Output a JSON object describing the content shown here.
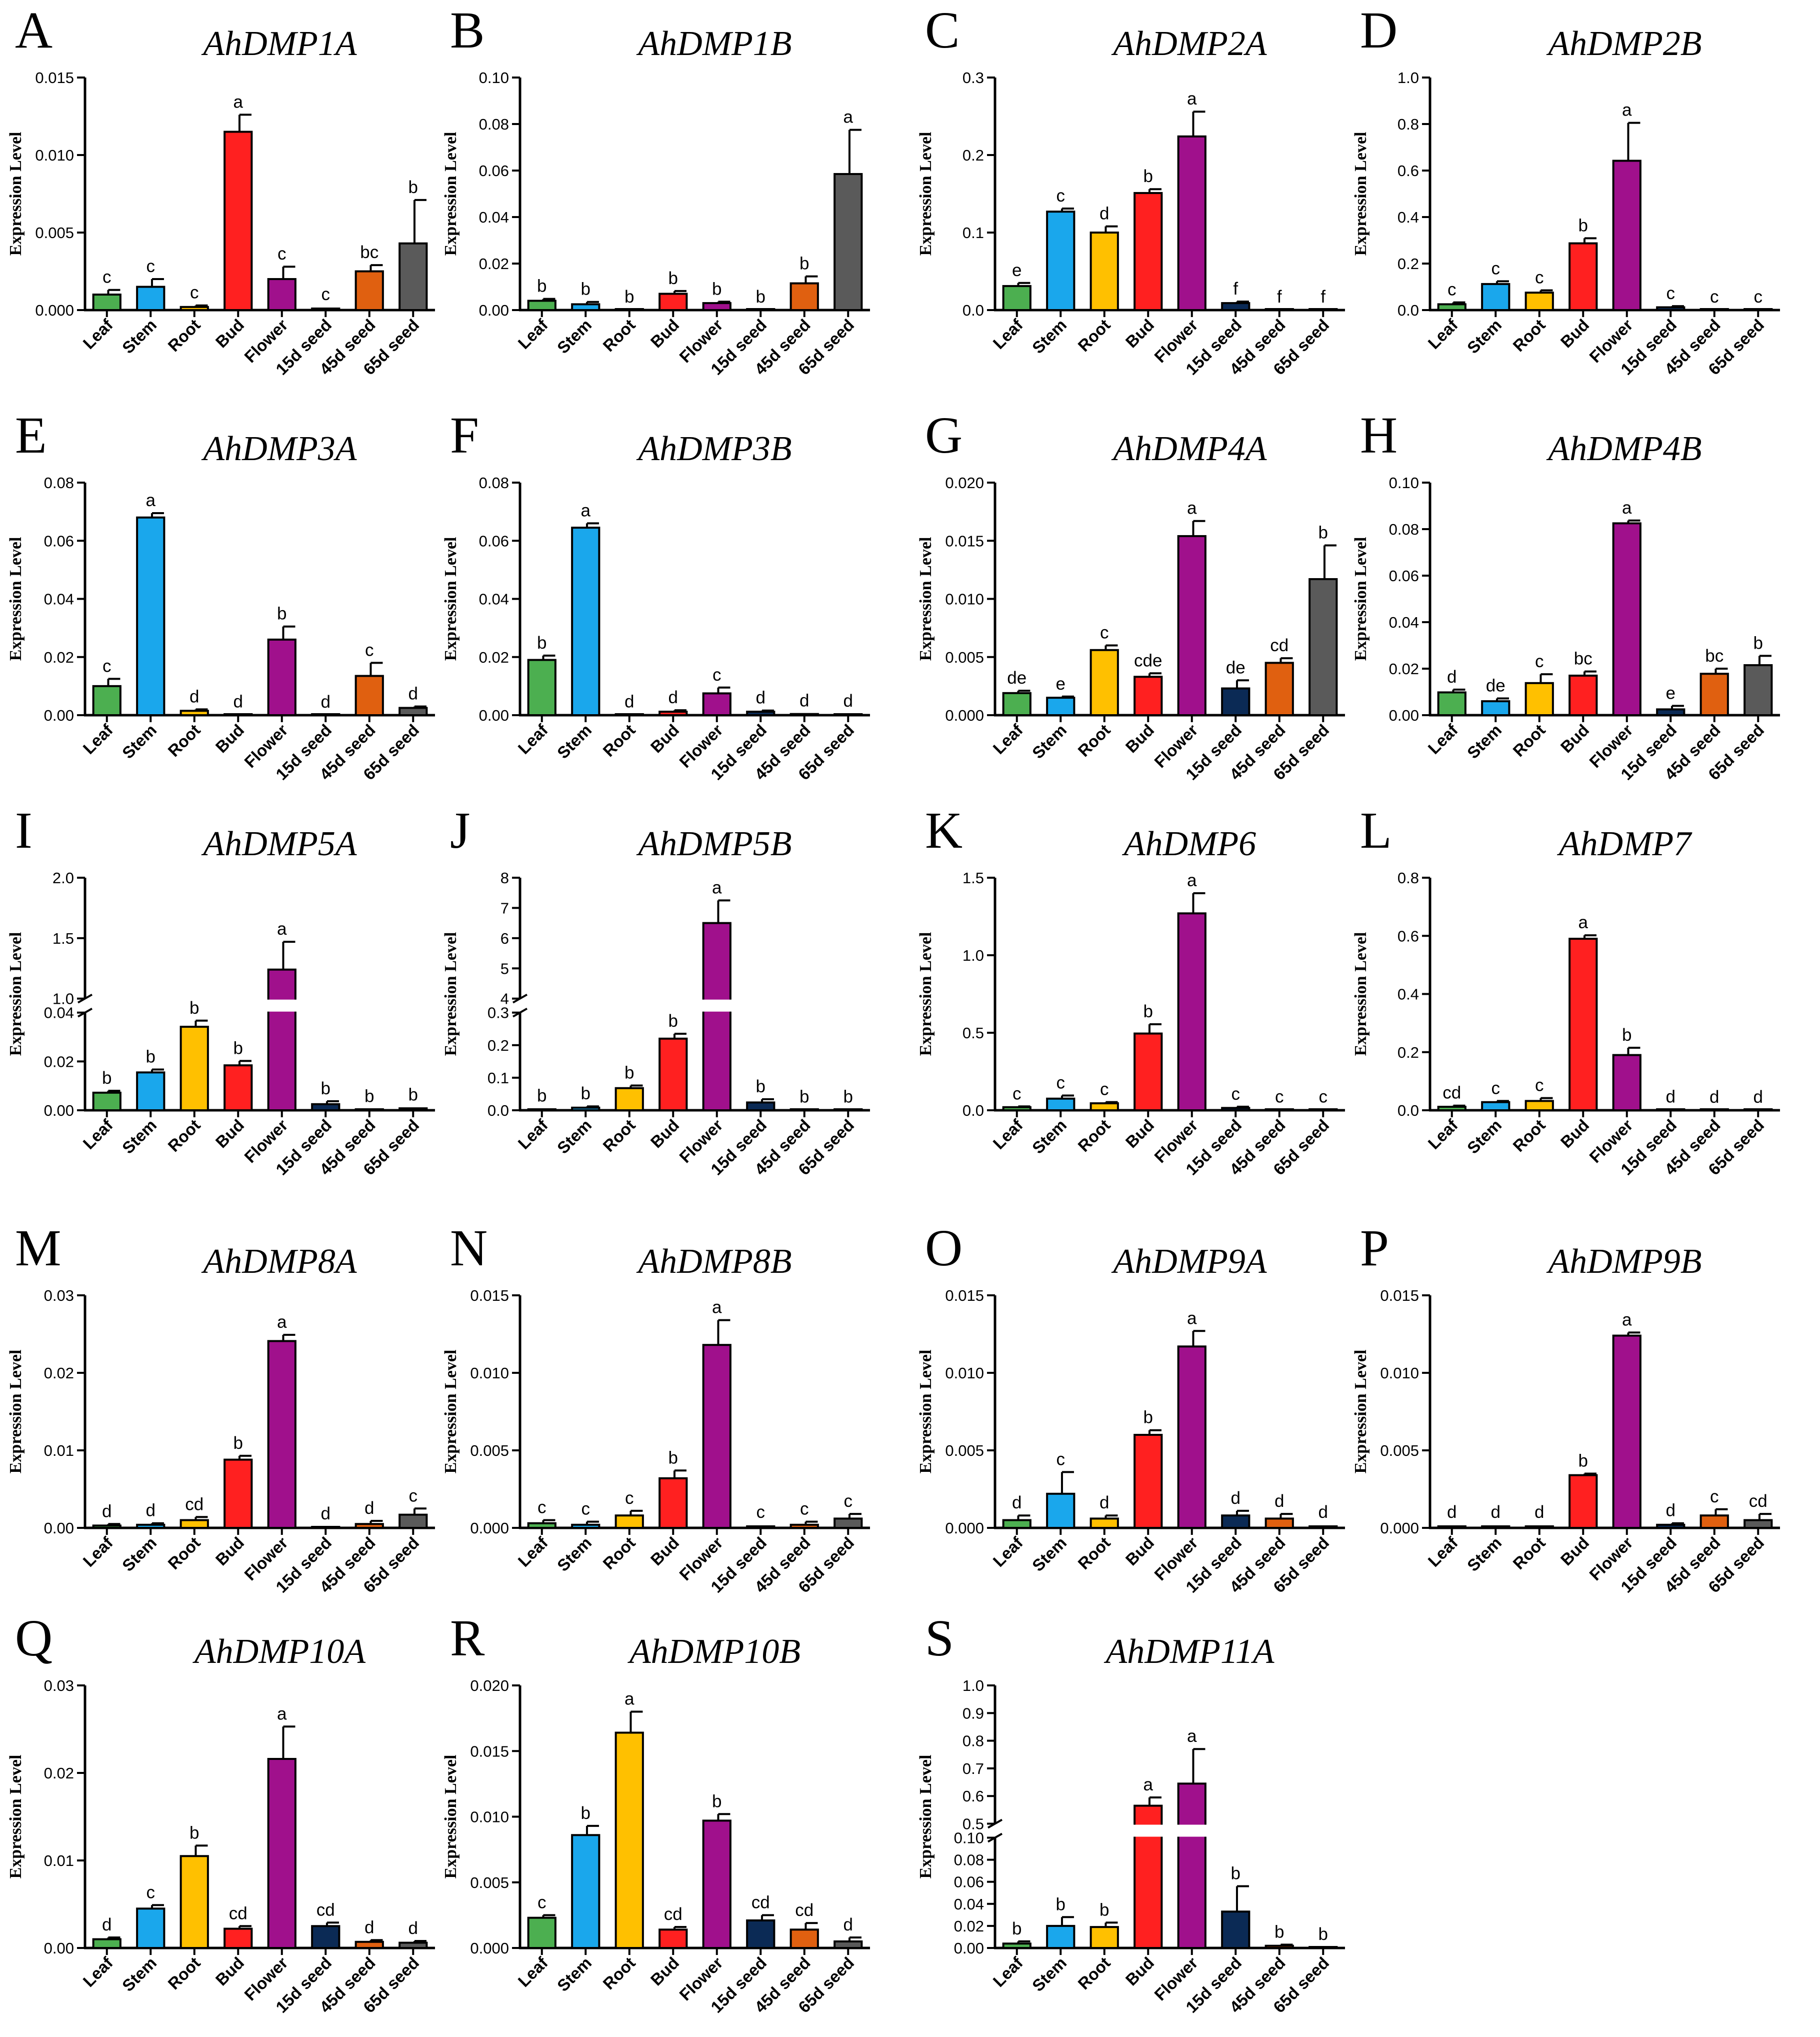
{
  "figure": {
    "categories": [
      "Leaf",
      "Stem",
      "Root",
      "Bud",
      "Flower",
      "15d seed",
      "45d seed",
      "65d seed"
    ],
    "colors": [
      "#4caf50",
      "#1aa7ec",
      "#ffc000",
      "#ff2020",
      "#a0108c",
      "#0b2a55",
      "#e06010",
      "#5a5a5a"
    ]
  },
  "chart_data": [
    {
      "panel": "A",
      "title": "AhDMP1A",
      "type": "bar",
      "ylabel": "Expression Level",
      "yticks": [
        0.0,
        0.005,
        0.01,
        0.015
      ],
      "tick_labels": [
        "0.000",
        "0.005",
        "0.010",
        "0.015"
      ],
      "ylim": [
        0,
        0.015
      ],
      "values": [
        0.001,
        0.0015,
        0.0002,
        0.0115,
        0.002,
        0.0001,
        0.0025,
        0.0043
      ],
      "errors": [
        0.0003,
        0.0005,
        0.0001,
        0.0011,
        0.0008,
        0.0001,
        0.0004,
        0.0028
      ],
      "sig": [
        "c",
        "c",
        "c",
        "a",
        "c",
        "c",
        "bc",
        "b"
      ]
    },
    {
      "panel": "B",
      "title": "AhDMP1B",
      "type": "bar",
      "ylabel": "Expression Level",
      "yticks": [
        0,
        0.02,
        0.04,
        0.06,
        0.08,
        0.1
      ],
      "tick_labels": [
        "0.00",
        "0.02",
        "0.04",
        "0.06",
        "0.08",
        "0.10"
      ],
      "ylim": [
        0,
        0.1
      ],
      "values": [
        0.004,
        0.0025,
        0.0001,
        0.007,
        0.003,
        0.0001,
        0.0115,
        0.0585
      ],
      "errors": [
        0.0008,
        0.001,
        0.0001,
        0.0012,
        0.0006,
        0.0001,
        0.003,
        0.019
      ],
      "sig": [
        "b",
        "b",
        "b",
        "b",
        "b",
        "b",
        "b",
        "a"
      ]
    },
    {
      "panel": "C",
      "title": "AhDMP2A",
      "type": "bar",
      "ylabel": "Expression Level",
      "yticks": [
        0,
        0.1,
        0.2,
        0.3
      ],
      "tick_labels": [
        "0.0",
        "0.1",
        "0.2",
        "0.3"
      ],
      "ylim": [
        0,
        0.3
      ],
      "values": [
        0.031,
        0.127,
        0.1,
        0.151,
        0.224,
        0.009,
        0.0005,
        0.0003
      ],
      "errors": [
        0.004,
        0.004,
        0.008,
        0.005,
        0.032,
        0.002,
        0.0003,
        0.0002
      ],
      "sig": [
        "e",
        "c",
        "d",
        "b",
        "a",
        "f",
        "f",
        "f"
      ]
    },
    {
      "panel": "D",
      "title": "AhDMP2B",
      "type": "bar",
      "ylabel": "Expression Level",
      "yticks": [
        0,
        0.2,
        0.4,
        0.6,
        0.8,
        1.0
      ],
      "tick_labels": [
        "0.0",
        "0.2",
        "0.4",
        "0.6",
        "0.8",
        "1.0"
      ],
      "ylim": [
        0,
        1.0
      ],
      "values": [
        0.025,
        0.112,
        0.075,
        0.287,
        0.642,
        0.012,
        0.001,
        0.001
      ],
      "errors": [
        0.008,
        0.012,
        0.01,
        0.022,
        0.163,
        0.005,
        0.001,
        0.001
      ],
      "sig": [
        "c",
        "c",
        "c",
        "b",
        "a",
        "c",
        "c",
        "c"
      ]
    },
    {
      "panel": "E",
      "title": "AhDMP3A",
      "type": "bar",
      "ylabel": "Expression Level",
      "yticks": [
        0,
        0.02,
        0.04,
        0.06,
        0.08
      ],
      "tick_labels": [
        "0.00",
        "0.02",
        "0.04",
        "0.06",
        "0.08"
      ],
      "ylim": [
        0,
        0.08
      ],
      "values": [
        0.01,
        0.068,
        0.0015,
        0.0002,
        0.026,
        0.0001,
        0.0135,
        0.0025
      ],
      "errors": [
        0.0025,
        0.0015,
        0.0005,
        0.0001,
        0.0045,
        0.0001,
        0.0045,
        0.0005
      ],
      "sig": [
        "c",
        "a",
        "d",
        "d",
        "b",
        "d",
        "c",
        "d"
      ]
    },
    {
      "panel": "F",
      "title": "AhDMP3B",
      "type": "bar",
      "ylabel": "Expression Level",
      "yticks": [
        0,
        0.02,
        0.04,
        0.06,
        0.08
      ],
      "tick_labels": [
        "0.00",
        "0.02",
        "0.04",
        "0.06",
        "0.08"
      ],
      "ylim": [
        0,
        0.08
      ],
      "values": [
        0.019,
        0.0645,
        0.0002,
        0.0012,
        0.0075,
        0.0012,
        0.0004,
        0.0003
      ],
      "errors": [
        0.0015,
        0.0015,
        0.0001,
        0.0005,
        0.002,
        0.0004,
        0.0002,
        0.0002
      ],
      "sig": [
        "b",
        "a",
        "d",
        "d",
        "c",
        "d",
        "d",
        "d"
      ]
    },
    {
      "panel": "G",
      "title": "AhDMP4A",
      "type": "bar",
      "ylabel": "Expression Level",
      "yticks": [
        0,
        0.005,
        0.01,
        0.015,
        0.02
      ],
      "tick_labels": [
        "0.000",
        "0.005",
        "0.010",
        "0.015",
        "0.020"
      ],
      "ylim": [
        0,
        0.02
      ],
      "values": [
        0.0019,
        0.0015,
        0.0056,
        0.0033,
        0.0154,
        0.0023,
        0.0045,
        0.0117
      ],
      "errors": [
        0.0002,
        0.0001,
        0.0004,
        0.0003,
        0.0013,
        0.0007,
        0.0004,
        0.0029
      ],
      "sig": [
        "de",
        "e",
        "c",
        "cde",
        "a",
        "de",
        "cd",
        "b"
      ]
    },
    {
      "panel": "H",
      "title": "AhDMP4B",
      "type": "bar",
      "ylabel": "Expression Level",
      "yticks": [
        0,
        0.02,
        0.04,
        0.06,
        0.08,
        0.1
      ],
      "tick_labels": [
        "0.00",
        "0.02",
        "0.04",
        "0.06",
        "0.08",
        "0.10"
      ],
      "ylim": [
        0,
        0.1
      ],
      "values": [
        0.0098,
        0.006,
        0.0138,
        0.017,
        0.0825,
        0.0025,
        0.0178,
        0.0215
      ],
      "errors": [
        0.0012,
        0.0012,
        0.0038,
        0.0018,
        0.0012,
        0.0015,
        0.0022,
        0.004
      ],
      "sig": [
        "d",
        "de",
        "c",
        "bc",
        "a",
        "e",
        "bc",
        "b"
      ]
    },
    {
      "panel": "I",
      "title": "AhDMP5A",
      "type": "bar",
      "ylabel": "Expression Level",
      "broken": true,
      "lower": {
        "ylim": [
          0,
          0.04
        ],
        "yticks": [
          0,
          0.02,
          0.04
        ],
        "tick_labels": [
          "0.00",
          "0.02",
          "0.04"
        ]
      },
      "upper": {
        "ylim": [
          1.0,
          2.0
        ],
        "yticks": [
          1.0,
          1.5,
          2.0
        ],
        "tick_labels": [
          "1.0",
          "1.5",
          "2.0"
        ]
      },
      "values": [
        0.0072,
        0.0155,
        0.0342,
        0.0184,
        1.24,
        0.0025,
        0.0003,
        0.0008
      ],
      "errors": [
        0.0008,
        0.0012,
        0.0025,
        0.0018,
        0.23,
        0.0012,
        0.0002,
        0.0003
      ],
      "sig": [
        "b",
        "b",
        "b",
        "b",
        "a",
        "b",
        "b",
        "b"
      ]
    },
    {
      "panel": "J",
      "title": "AhDMP5B",
      "type": "bar",
      "ylabel": "Expression Level",
      "broken": true,
      "lower": {
        "ylim": [
          0,
          0.3
        ],
        "yticks": [
          0,
          0.1,
          0.2,
          0.3
        ],
        "tick_labels": [
          "0.0",
          "0.1",
          "0.2",
          "0.3"
        ]
      },
      "upper": {
        "ylim": [
          4,
          8
        ],
        "yticks": [
          4,
          5,
          6,
          7,
          8
        ],
        "tick_labels": [
          "4",
          "5",
          "6",
          "7",
          "8"
        ]
      },
      "values": [
        0.003,
        0.008,
        0.068,
        0.22,
        6.5,
        0.024,
        0.001,
        0.001
      ],
      "errors": [
        0.002,
        0.004,
        0.008,
        0.015,
        0.75,
        0.01,
        0.001,
        0.001
      ],
      "sig": [
        "b",
        "b",
        "b",
        "b",
        "a",
        "b",
        "b",
        "b"
      ]
    },
    {
      "panel": "K",
      "title": "AhDMP6",
      "type": "bar",
      "ylabel": "Expression Level",
      "yticks": [
        0,
        0.5,
        1.0,
        1.5
      ],
      "tick_labels": [
        "0.0",
        "0.5",
        "1.0",
        "1.5"
      ],
      "ylim": [
        0,
        1.5
      ],
      "values": [
        0.02,
        0.075,
        0.045,
        0.495,
        1.27,
        0.015,
        0.003,
        0.003
      ],
      "errors": [
        0.005,
        0.02,
        0.008,
        0.06,
        0.13,
        0.008,
        0.002,
        0.002
      ],
      "sig": [
        "c",
        "c",
        "c",
        "b",
        "a",
        "c",
        "c",
        "c"
      ]
    },
    {
      "panel": "L",
      "title": "AhDMP7",
      "type": "bar",
      "ylabel": "Expression Level",
      "yticks": [
        0,
        0.2,
        0.4,
        0.6,
        0.8
      ],
      "tick_labels": [
        "0.0",
        "0.2",
        "0.4",
        "0.6",
        "0.8"
      ],
      "ylim": [
        0,
        0.8
      ],
      "values": [
        0.012,
        0.028,
        0.032,
        0.59,
        0.19,
        0.002,
        0.001,
        0.001
      ],
      "errors": [
        0.004,
        0.004,
        0.01,
        0.012,
        0.025,
        0.001,
        0.001,
        0.001
      ],
      "sig": [
        "cd",
        "c",
        "c",
        "a",
        "b",
        "d",
        "d",
        "d"
      ]
    },
    {
      "panel": "M",
      "title": "AhDMP8A",
      "type": "bar",
      "ylabel": "Expression Level",
      "yticks": [
        0,
        0.01,
        0.02,
        0.03
      ],
      "tick_labels": [
        "0.00",
        "0.01",
        "0.02",
        "0.03"
      ],
      "ylim": [
        0,
        0.03
      ],
      "values": [
        0.0003,
        0.0004,
        0.001,
        0.0088,
        0.0241,
        0.0001,
        0.0005,
        0.0017
      ],
      "errors": [
        0.0002,
        0.0002,
        0.0004,
        0.0005,
        0.0008,
        0.0001,
        0.0004,
        0.0008
      ],
      "sig": [
        "d",
        "d",
        "cd",
        "b",
        "a",
        "d",
        "d",
        "c"
      ]
    },
    {
      "panel": "N",
      "title": "AhDMP8B",
      "type": "bar",
      "ylabel": "Expression Level",
      "yticks": [
        0,
        0.005,
        0.01,
        0.015
      ],
      "tick_labels": [
        "0.000",
        "0.005",
        "0.010",
        "0.015"
      ],
      "ylim": [
        0,
        0.015
      ],
      "values": [
        0.0003,
        0.0002,
        0.0008,
        0.0032,
        0.0118,
        0.0001,
        0.0002,
        0.0006
      ],
      "errors": [
        0.0002,
        0.0002,
        0.0003,
        0.0005,
        0.0016,
        0.0001,
        0.0002,
        0.0003
      ],
      "sig": [
        "c",
        "c",
        "c",
        "b",
        "a",
        "c",
        "c",
        "c"
      ]
    },
    {
      "panel": "O",
      "title": "AhDMP9A",
      "type": "bar",
      "ylabel": "Expression Level",
      "yticks": [
        0,
        0.005,
        0.01,
        0.015
      ],
      "tick_labels": [
        "0.000",
        "0.005",
        "0.010",
        "0.015"
      ],
      "ylim": [
        0,
        0.015
      ],
      "values": [
        0.0005,
        0.0022,
        0.0006,
        0.006,
        0.0117,
        0.0008,
        0.0006,
        0.0001
      ],
      "errors": [
        0.0003,
        0.0014,
        0.0002,
        0.0003,
        0.001,
        0.0003,
        0.0003,
        0.0001
      ],
      "sig": [
        "d",
        "c",
        "d",
        "b",
        "a",
        "d",
        "d",
        "d"
      ]
    },
    {
      "panel": "P",
      "title": "AhDMP9B",
      "type": "bar",
      "ylabel": "Expression Level",
      "yticks": [
        0,
        0.005,
        0.01,
        0.015
      ],
      "tick_labels": [
        "0.000",
        "0.005",
        "0.010",
        "0.015"
      ],
      "ylim": [
        0,
        0.015
      ],
      "values": [
        0.0001,
        0.0001,
        0.0001,
        0.0034,
        0.0124,
        0.0002,
        0.0008,
        0.0005
      ],
      "errors": [
        0.0001,
        0.0001,
        0.0001,
        0.0001,
        0.0002,
        0.0001,
        0.0004,
        0.0004
      ],
      "sig": [
        "d",
        "d",
        "d",
        "b",
        "a",
        "d",
        "c",
        "cd"
      ]
    },
    {
      "panel": "Q",
      "title": "AhDMP10A",
      "type": "bar",
      "ylabel": "Expression Level",
      "yticks": [
        0,
        0.01,
        0.02,
        0.03
      ],
      "tick_labels": [
        "0.00",
        "0.01",
        "0.02",
        "0.03"
      ],
      "ylim": [
        0,
        0.03
      ],
      "values": [
        0.001,
        0.0045,
        0.0105,
        0.0022,
        0.0216,
        0.0025,
        0.0007,
        0.0006
      ],
      "errors": [
        0.0002,
        0.0004,
        0.0012,
        0.0003,
        0.0037,
        0.0004,
        0.0002,
        0.0002
      ],
      "sig": [
        "d",
        "c",
        "b",
        "cd",
        "a",
        "cd",
        "d",
        "d"
      ]
    },
    {
      "panel": "R",
      "title": "AhDMP10B",
      "type": "bar",
      "ylabel": "Expression Level",
      "yticks": [
        0,
        0.005,
        0.01,
        0.015,
        0.02
      ],
      "tick_labels": [
        "0.000",
        "0.005",
        "0.010",
        "0.015",
        "0.020"
      ],
      "ylim": [
        0,
        0.02
      ],
      "values": [
        0.0023,
        0.0086,
        0.0164,
        0.0014,
        0.0097,
        0.0021,
        0.0014,
        0.0005
      ],
      "errors": [
        0.0002,
        0.0007,
        0.0016,
        0.0002,
        0.0005,
        0.0004,
        0.0005,
        0.0003
      ],
      "sig": [
        "c",
        "b",
        "a",
        "cd",
        "b",
        "cd",
        "cd",
        "d"
      ]
    },
    {
      "panel": "S",
      "title": "AhDMP11A",
      "type": "bar",
      "ylabel": "Expression Level",
      "broken": true,
      "lower": {
        "ylim": [
          0,
          0.1
        ],
        "yticks": [
          0,
          0.02,
          0.04,
          0.06,
          0.08,
          0.1
        ],
        "tick_labels": [
          "0.00",
          "0.02",
          "0.04",
          "0.06",
          "0.08",
          "0.10"
        ]
      },
      "upper": {
        "ylim": [
          0.5,
          1.0
        ],
        "yticks": [
          0.5,
          0.6,
          0.7,
          0.8,
          0.9,
          1.0
        ],
        "tick_labels": [
          "0.5",
          "0.6",
          "0.7",
          "0.8",
          "0.9",
          "1.0"
        ]
      },
      "values": [
        0.004,
        0.02,
        0.019,
        0.565,
        0.645,
        0.033,
        0.002,
        0.0005
      ],
      "errors": [
        0.002,
        0.008,
        0.004,
        0.03,
        0.125,
        0.023,
        0.001,
        0.0003
      ],
      "sig": [
        "b",
        "b",
        "b",
        "a",
        "a",
        "b",
        "b",
        "b"
      ]
    }
  ]
}
